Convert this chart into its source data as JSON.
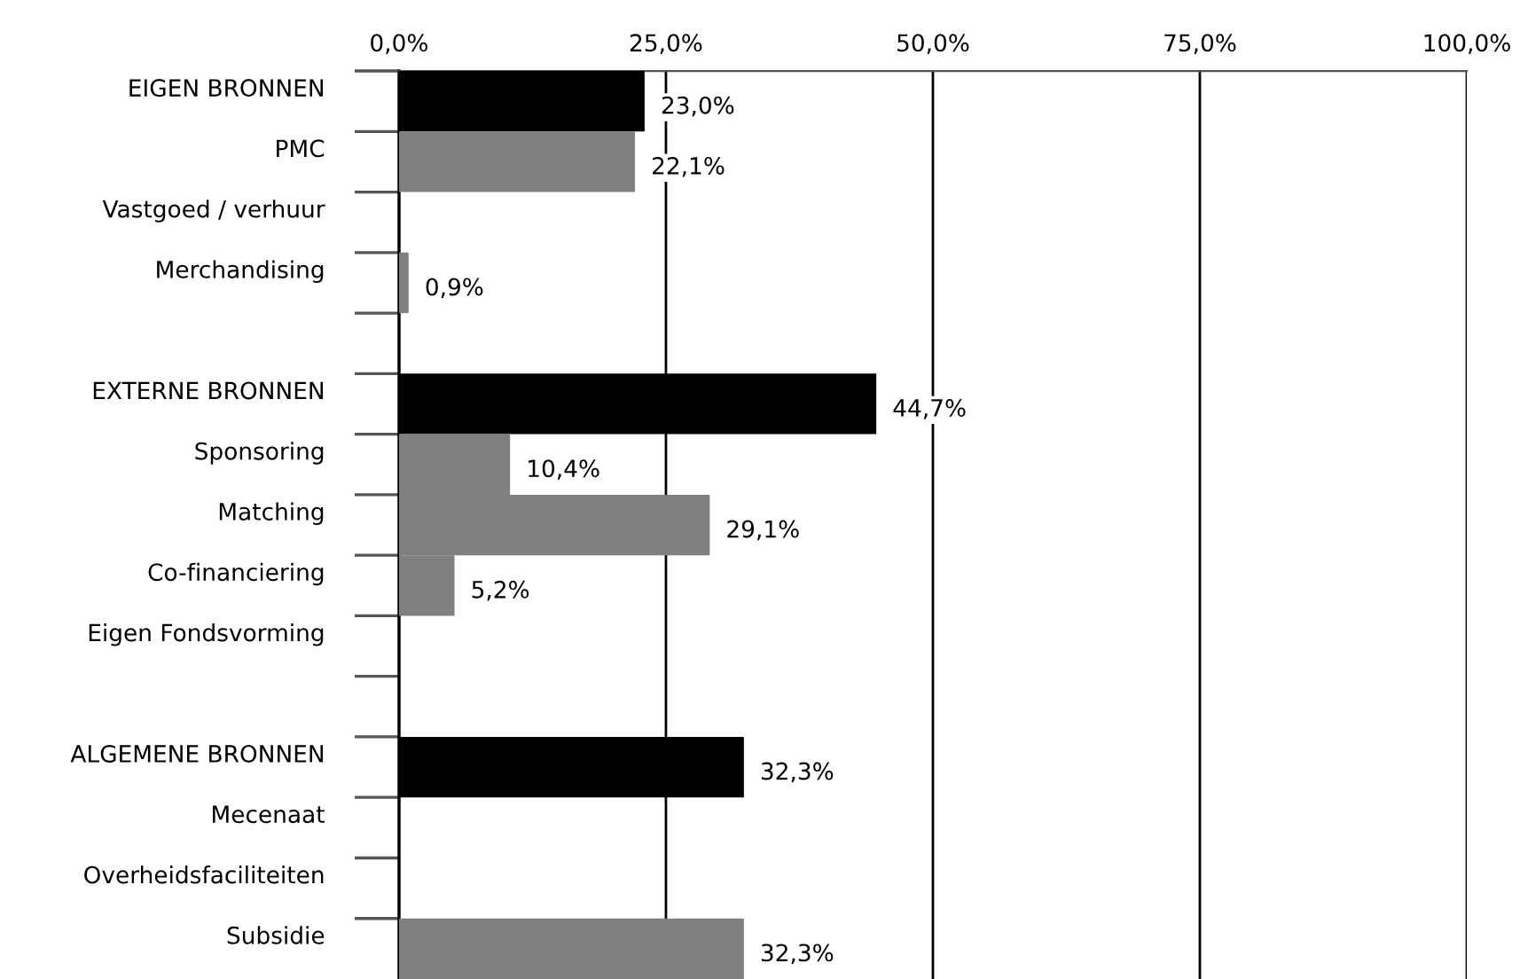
{
  "chart_data": {
    "type": "bar",
    "orientation": "horizontal",
    "categories": [
      "EIGEN BRONNEN",
      "PMC",
      "Vastgoed / verhuur",
      "Merchandising",
      null,
      "EXTERNE BRONNEN",
      "Sponsoring",
      "Matching",
      "Co-financiering",
      "Eigen Fondsvorming",
      null,
      "ALGEMENE BRONNEN",
      "Mecenaat",
      "Overheidsfaciliteiten",
      "Subsidie"
    ],
    "values": [
      23.0,
      22.1,
      null,
      0.9,
      null,
      44.7,
      10.4,
      29.1,
      5.2,
      null,
      null,
      32.3,
      null,
      null,
      32.3
    ],
    "colors": [
      "#000000",
      "#808080",
      "#808080",
      "#808080",
      "#808080",
      "#000000",
      "#808080",
      "#808080",
      "#808080",
      "#808080",
      "#808080",
      "#000000",
      "#808080",
      "#808080",
      "#808080"
    ],
    "value_labels": [
      "23,0%",
      "22,1%",
      null,
      "0,9%",
      null,
      "44,7%",
      "10,4%",
      "29,1%",
      "5,2%",
      null,
      null,
      "32,3%",
      null,
      null,
      "32,3%"
    ],
    "xlim": [
      0,
      100
    ],
    "xticks": [
      {
        "value": 0,
        "label": "0,0%"
      },
      {
        "value": 25,
        "label": "25,0%"
      },
      {
        "value": 50,
        "label": "50,0%"
      },
      {
        "value": 75,
        "label": "75,0%"
      },
      {
        "value": 100,
        "label": "100,0%"
      }
    ],
    "grid": "x",
    "legend": false
  }
}
